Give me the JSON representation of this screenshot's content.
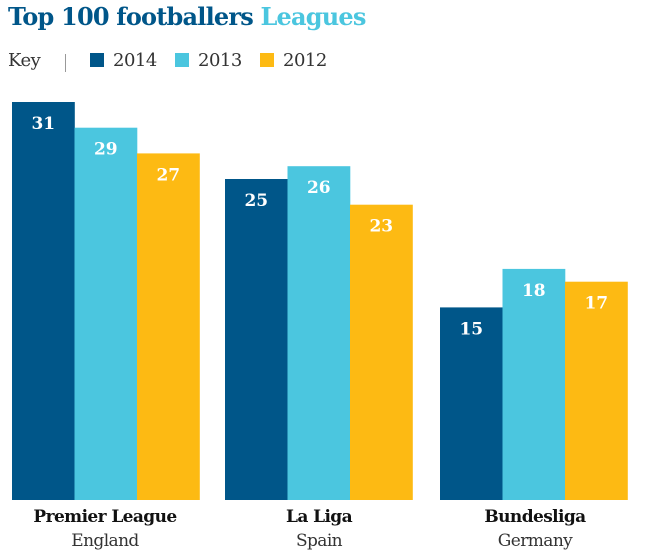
{
  "chart_data": {
    "type": "bar",
    "title": "Top 100 footballers",
    "subtitle": "Leagues",
    "legend_prefix": "Key",
    "categories": [
      "Premier League",
      "La Liga",
      "Bundesliga"
    ],
    "category_subtitles": [
      "England",
      "Spain",
      "Germany"
    ],
    "series": [
      {
        "name": "2014",
        "color": "#005689",
        "values": [
          31,
          25,
          15
        ]
      },
      {
        "name": "2013",
        "color": "#4bc6df",
        "values": [
          29,
          26,
          18
        ]
      },
      {
        "name": "2012",
        "color": "#fdba13",
        "values": [
          27,
          23,
          17
        ]
      }
    ],
    "ylim": [
      0,
      31
    ],
    "grid": false,
    "legend_position": "top-left",
    "xlabel": "",
    "ylabel": ""
  }
}
